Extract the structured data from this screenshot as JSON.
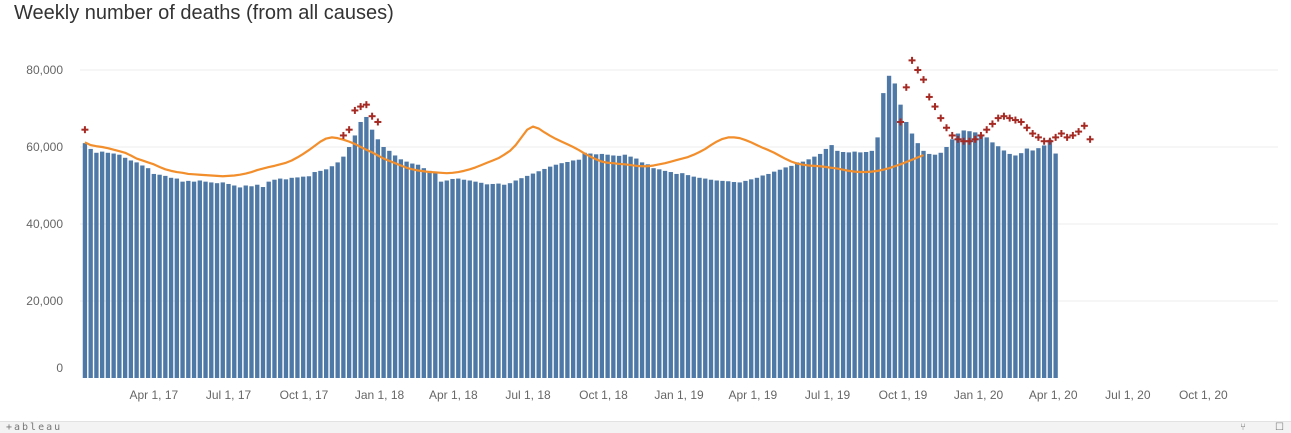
{
  "chart_data": {
    "type": "bar",
    "title": "Weekly number of deaths (from all causes)",
    "xlabel": "",
    "ylabel": "",
    "ylim": [
      0,
      80000
    ],
    "y_ticks": [
      0,
      20000,
      40000,
      60000,
      80000
    ],
    "y_tick_labels": [
      "0",
      "20,000",
      "40,000",
      "60,000",
      "80,000"
    ],
    "x_range": [
      "2017-01-01",
      "2020-12-31"
    ],
    "x_ticks": [
      "2017-04-01",
      "2017-07-01",
      "2017-10-01",
      "2018-01-01",
      "2018-04-01",
      "2018-07-01",
      "2018-10-01",
      "2019-01-01",
      "2019-04-01",
      "2019-07-01",
      "2019-10-01",
      "2020-01-01",
      "2020-04-01",
      "2020-07-01",
      "2020-10-01"
    ],
    "x_tick_labels": [
      "Apr 1, 17",
      "Jul 1, 17",
      "Oct 1, 17",
      "Jan 1, 18",
      "Apr 1, 18",
      "Jul 1, 18",
      "Oct 1, 18",
      "Jan 1, 19",
      "Apr 1, 19",
      "Jul 1, 19",
      "Oct 1, 19",
      "Jan 1, 20",
      "Apr 1, 20",
      "Jul 1, 20",
      "Oct 1, 20"
    ],
    "grid": true,
    "legend": "none",
    "colors": {
      "bars": "#4e79a7",
      "expected": "#f28e2b",
      "excess_marker": "#a62a24"
    },
    "first_week": "2017-01-07",
    "series": [
      {
        "type": "bar",
        "values": [
          61000,
          59500,
          58500,
          58800,
          58500,
          58300,
          58000,
          57200,
          56500,
          56000,
          55200,
          54500,
          53000,
          52800,
          52500,
          52000,
          51800,
          51000,
          51200,
          51000,
          51300,
          51000,
          50800,
          50600,
          50800,
          50400,
          50000,
          49500,
          50000,
          49800,
          50200,
          49600,
          51000,
          51500,
          51800,
          51600,
          52000,
          52100,
          52300,
          52400,
          53500,
          53800,
          54200,
          55000,
          56000,
          57500,
          60000,
          63000,
          66500,
          67800,
          64500,
          62000,
          60000,
          59000,
          57800,
          56800,
          56200,
          55700,
          55400,
          54500,
          53800,
          53500,
          51000,
          51300,
          51700,
          51800,
          51500,
          51300,
          51000,
          50700,
          50300,
          50400,
          50500,
          50200,
          50600,
          51300,
          51900,
          52500,
          53100,
          53700,
          54300,
          54900,
          55400,
          55800,
          56100,
          56500,
          56700,
          58500,
          58300,
          58100,
          58200,
          58000,
          57800,
          57700,
          58000,
          57500,
          57000,
          56000,
          55500,
          54500,
          54200,
          53800,
          53500,
          53000,
          53200,
          52700,
          52300,
          52000,
          51800,
          51500,
          51300,
          51200,
          51100,
          50900,
          50800,
          51200,
          51600,
          52000,
          52600,
          53000,
          53600,
          54100,
          54700,
          55100,
          56000,
          56200,
          56800,
          57500,
          58200,
          59500,
          60500,
          59000,
          58700,
          58600,
          58800,
          58600,
          58700,
          59000,
          62500,
          74000,
          78500,
          76500,
          71000,
          66500,
          63500,
          61000,
          59000,
          58200,
          58000,
          58500,
          60000,
          62000,
          63500,
          64300,
          64100,
          63800,
          63200,
          62500,
          61200,
          60200,
          59100,
          58200,
          57800,
          58400,
          59600,
          59100,
          59700,
          60400,
          61900,
          58300
        ],
        "expected": [
          61200,
          60500,
          60200,
          60000,
          59700,
          59300,
          58900,
          58500,
          57800,
          57000,
          56500,
          56000,
          55500,
          54800,
          54200,
          53800,
          53500,
          53300,
          53000,
          52900,
          52800,
          52700,
          52600,
          52500,
          52400,
          52500,
          52600,
          52800,
          53100,
          53500,
          54000,
          54400,
          54800,
          55100,
          55500,
          55900,
          56500,
          57300,
          58200,
          59200,
          60300,
          61400,
          62200,
          62500,
          62300,
          61900,
          61400,
          60800,
          60000,
          59300,
          58600,
          57800,
          57000,
          56400,
          55800,
          55200,
          54600,
          54200,
          53900,
          53700,
          53500,
          53400,
          53300,
          53200,
          53300,
          53500,
          53800,
          54200,
          54700,
          55300,
          55900,
          56500,
          57100,
          58000,
          59000,
          60500,
          62500,
          64500,
          65300,
          64800,
          63800,
          62900,
          62100,
          61400,
          60700,
          60000,
          59200,
          58300,
          57500,
          56800,
          56200,
          55900,
          55800,
          55600,
          55500,
          55300,
          55100,
          55000,
          55000,
          55200,
          55500,
          55800,
          56200,
          56600,
          57000,
          57400,
          58000,
          58700,
          59500,
          60500,
          61400,
          62100,
          62500,
          62500,
          62300,
          61800,
          61200,
          60500,
          59800,
          59200,
          58500,
          57700,
          56900,
          56200,
          55700,
          55400,
          55200,
          55100,
          55000,
          54800,
          54600,
          54400,
          54100,
          53800,
          53600,
          53500,
          53500,
          53600,
          53800,
          54100,
          54500,
          55000,
          55500,
          56100,
          56700,
          57300,
          57900
        ],
        "excess_markers": [
          [
            0,
            64500
          ],
          [
            45,
            63000
          ],
          [
            46,
            64500
          ],
          [
            47,
            69500
          ],
          [
            48,
            70500
          ],
          [
            49,
            71000
          ],
          [
            50,
            68000
          ],
          [
            51,
            66500
          ],
          [
            142,
            66500
          ],
          [
            143,
            75500
          ],
          [
            144,
            82500
          ],
          [
            145,
            80000
          ],
          [
            146,
            77500
          ],
          [
            147,
            73000
          ],
          [
            148,
            70500
          ],
          [
            149,
            67500
          ],
          [
            150,
            65000
          ],
          [
            151,
            63000
          ],
          [
            152,
            62000
          ],
          [
            153,
            61500
          ],
          [
            154,
            61500
          ],
          [
            155,
            62000
          ],
          [
            156,
            63000
          ],
          [
            157,
            64500
          ],
          [
            158,
            66000
          ],
          [
            159,
            67500
          ],
          [
            160,
            68000
          ],
          [
            161,
            67500
          ],
          [
            162,
            67000
          ],
          [
            163,
            66500
          ],
          [
            164,
            65000
          ],
          [
            165,
            63500
          ],
          [
            166,
            62500
          ],
          [
            167,
            61500
          ],
          [
            168,
            61500
          ],
          [
            169,
            62500
          ],
          [
            170,
            63500
          ],
          [
            171,
            62500
          ],
          [
            172,
            63000
          ],
          [
            173,
            64000
          ],
          [
            174,
            65500
          ],
          [
            175,
            62000
          ]
        ]
      }
    ]
  },
  "footer": {
    "brand": "+ableau",
    "share_icon": "share-icon",
    "fullscreen_icon": "fullscreen-icon"
  }
}
